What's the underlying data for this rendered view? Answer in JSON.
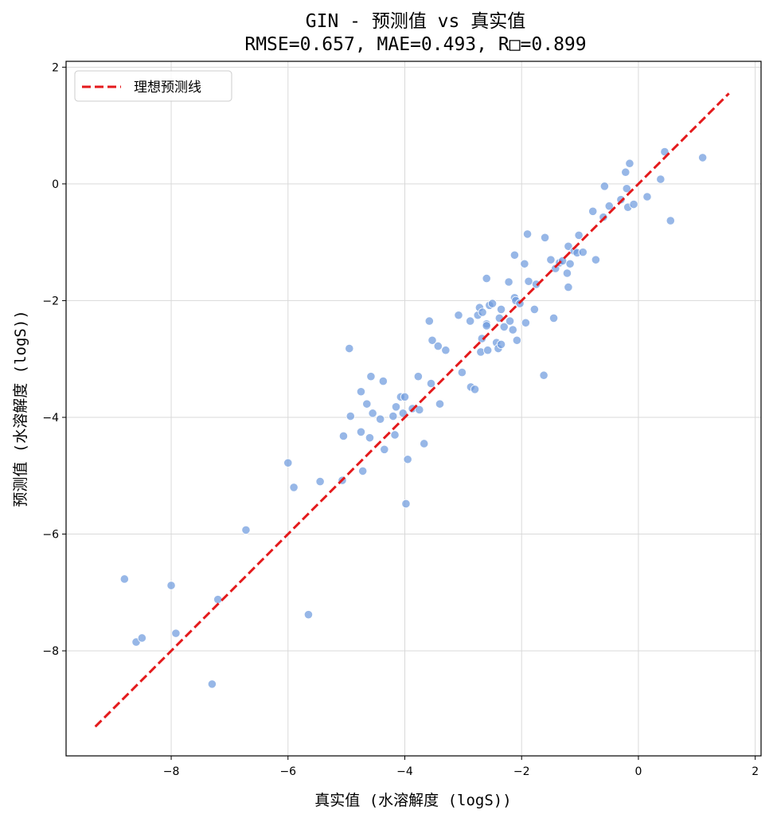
{
  "chart_data": {
    "type": "scatter",
    "title": "GIN - 预测值 vs 真实值",
    "subtitle": "RMSE=0.657, MAE=0.493, R□=0.899",
    "xlabel": "真实值 (水溶解度 (logS))",
    "ylabel": "预测值 (水溶解度 (logS))",
    "xlim": [
      -9.8,
      2.1
    ],
    "ylim": [
      -9.8,
      2.1
    ],
    "xticks": [
      -8,
      -6,
      -4,
      -2,
      0,
      2
    ],
    "yticks": [
      -8,
      -6,
      -4,
      -2,
      0,
      2
    ],
    "xtick_labels": [
      "−8",
      "−6",
      "−4",
      "−2",
      "0",
      "2"
    ],
    "ytick_labels": [
      "−8",
      "−6",
      "−4",
      "−2",
      "0",
      "2"
    ],
    "grid": true,
    "legend": {
      "position": "top-left",
      "entries": [
        "理想预测线"
      ]
    },
    "ideal_line": {
      "x": [
        -9.3,
        1.55
      ],
      "y": [
        -9.3,
        1.55
      ],
      "color": "#e41a1c",
      "style": "dashed"
    },
    "point_color": "#6f9bde",
    "points": [
      [
        -8.8,
        -6.77
      ],
      [
        -8.6,
        -7.85
      ],
      [
        -8.5,
        -7.78
      ],
      [
        -8.0,
        -6.88
      ],
      [
        -7.92,
        -7.7
      ],
      [
        -7.3,
        -8.57
      ],
      [
        -7.2,
        -7.12
      ],
      [
        -6.72,
        -5.93
      ],
      [
        -6.0,
        -4.78
      ],
      [
        -5.9,
        -5.2
      ],
      [
        -5.65,
        -7.38
      ],
      [
        -5.45,
        -5.1
      ],
      [
        -5.07,
        -5.08
      ],
      [
        -5.05,
        -4.32
      ],
      [
        -4.95,
        -2.82
      ],
      [
        -4.93,
        -3.98
      ],
      [
        -4.75,
        -3.56
      ],
      [
        -4.75,
        -4.25
      ],
      [
        -4.72,
        -4.92
      ],
      [
        -4.65,
        -3.77
      ],
      [
        -4.6,
        -4.35
      ],
      [
        -4.58,
        -3.3
      ],
      [
        -4.55,
        -3.93
      ],
      [
        -4.42,
        -4.03
      ],
      [
        -4.37,
        -3.38
      ],
      [
        -4.35,
        -4.55
      ],
      [
        -4.2,
        -3.98
      ],
      [
        -4.17,
        -4.3
      ],
      [
        -4.15,
        -3.82
      ],
      [
        -4.07,
        -3.65
      ],
      [
        -4.03,
        -3.93
      ],
      [
        -4.0,
        -3.65
      ],
      [
        -3.98,
        -5.48
      ],
      [
        -3.95,
        -4.72
      ],
      [
        -3.87,
        -3.85
      ],
      [
        -3.77,
        -3.3
      ],
      [
        -3.75,
        -3.87
      ],
      [
        -3.67,
        -4.45
      ],
      [
        -3.58,
        -2.35
      ],
      [
        -3.55,
        -3.42
      ],
      [
        -3.53,
        -2.68
      ],
      [
        -3.43,
        -2.78
      ],
      [
        -3.4,
        -3.77
      ],
      [
        -3.3,
        -2.85
      ],
      [
        -3.08,
        -2.25
      ],
      [
        -3.02,
        -3.23
      ],
      [
        -2.88,
        -2.35
      ],
      [
        -2.87,
        -3.48
      ],
      [
        -2.8,
        -3.52
      ],
      [
        -2.75,
        -2.25
      ],
      [
        -2.72,
        -2.12
      ],
      [
        -2.7,
        -2.88
      ],
      [
        -2.68,
        -2.65
      ],
      [
        -2.67,
        -2.2
      ],
      [
        -2.6,
        -2.4
      ],
      [
        -2.6,
        -2.43
      ],
      [
        -2.6,
        -1.62
      ],
      [
        -2.58,
        -2.85
      ],
      [
        -2.55,
        -2.08
      ],
      [
        -2.5,
        -2.05
      ],
      [
        -2.43,
        -2.72
      ],
      [
        -2.4,
        -2.82
      ],
      [
        -2.38,
        -2.3
      ],
      [
        -2.35,
        -2.15
      ],
      [
        -2.35,
        -2.75
      ],
      [
        -2.3,
        -2.45
      ],
      [
        -2.22,
        -1.68
      ],
      [
        -2.2,
        -2.35
      ],
      [
        -2.15,
        -2.5
      ],
      [
        -2.12,
        -1.22
      ],
      [
        -2.12,
        -1.95
      ],
      [
        -2.1,
        -2.0
      ],
      [
        -2.08,
        -2.68
      ],
      [
        -2.03,
        -2.05
      ],
      [
        -1.95,
        -1.37
      ],
      [
        -1.93,
        -2.38
      ],
      [
        -1.9,
        -0.86
      ],
      [
        -1.88,
        -1.67
      ],
      [
        -1.78,
        -2.15
      ],
      [
        -1.75,
        -1.72
      ],
      [
        -1.62,
        -3.28
      ],
      [
        -1.6,
        -0.92
      ],
      [
        -1.5,
        -1.3
      ],
      [
        -1.45,
        -2.3
      ],
      [
        -1.42,
        -1.45
      ],
      [
        -1.35,
        -1.35
      ],
      [
        -1.3,
        -1.32
      ],
      [
        -1.22,
        -1.53
      ],
      [
        -1.2,
        -1.07
      ],
      [
        -1.2,
        -1.77
      ],
      [
        -1.17,
        -1.37
      ],
      [
        -1.1,
        -1.15
      ],
      [
        -1.05,
        -1.18
      ],
      [
        -1.02,
        -0.88
      ],
      [
        -0.95,
        -1.17
      ],
      [
        -0.78,
        -0.47
      ],
      [
        -0.73,
        -1.3
      ],
      [
        -0.6,
        -0.57
      ],
      [
        -0.58,
        -0.04
      ],
      [
        -0.5,
        -0.38
      ],
      [
        -0.3,
        -0.27
      ],
      [
        -0.22,
        0.2
      ],
      [
        -0.2,
        -0.08
      ],
      [
        -0.18,
        -0.4
      ],
      [
        -0.15,
        0.35
      ],
      [
        -0.08,
        -0.35
      ],
      [
        0.15,
        -0.22
      ],
      [
        0.38,
        0.08
      ],
      [
        0.45,
        0.55
      ],
      [
        0.55,
        -0.63
      ],
      [
        1.1,
        0.45
      ]
    ]
  }
}
